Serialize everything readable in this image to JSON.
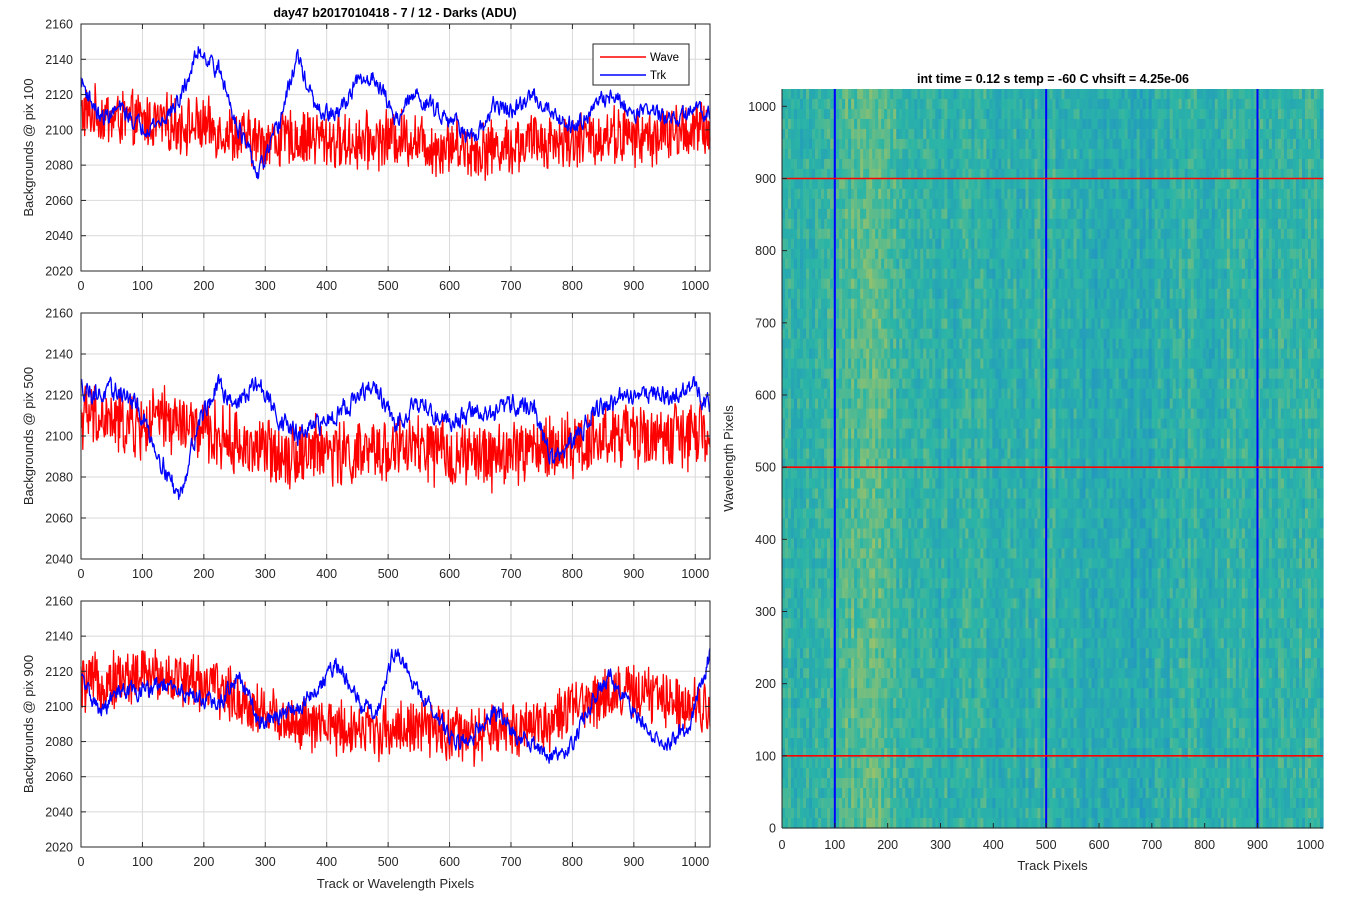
{
  "figure": {
    "title": "day47 b2017010418 - 7 / 12 - Darks (ADU)",
    "heatmap_title": "int time = 0.12 s    temp = -60 C    vhsift = 4.25e-06"
  },
  "colors": {
    "wave": "#ff0000",
    "trk": "#0000ff",
    "grid": "#d9d9d9",
    "axes": "#262626",
    "heatmap_low": "#1f8ec8",
    "heatmap_mid": "#2bb5a6",
    "heatmap_high": "#b9c65a"
  },
  "chart_data": [
    {
      "type": "line",
      "title": "day47 b2017010418 - 7 / 12 - Darks (ADU)",
      "xlabel": "",
      "ylabel": "Backgrounds @ pix 100",
      "xlim": [
        0,
        1024
      ],
      "ylim": [
        2020,
        2160
      ],
      "xticks": [
        "0",
        "100",
        "200",
        "300",
        "400",
        "500",
        "600",
        "700",
        "800",
        "900",
        "1000"
      ],
      "yticks": [
        "2020",
        "2040",
        "2060",
        "2080",
        "2100",
        "2120",
        "2140",
        "2160"
      ],
      "grid": true,
      "legend": "top-right",
      "x": [
        0,
        32,
        64,
        96,
        128,
        160,
        192,
        224,
        256,
        288,
        320,
        352,
        384,
        416,
        448,
        480,
        512,
        544,
        576,
        608,
        640,
        672,
        704,
        736,
        768,
        800,
        832,
        864,
        896,
        928,
        960,
        992,
        1024
      ],
      "series": [
        {
          "name": "Wave",
          "color": "#ff0000",
          "values": [
            2110,
            2108,
            2106,
            2105,
            2104,
            2103,
            2102,
            2100,
            2096,
            2094,
            2094,
            2095,
            2096,
            2093,
            2093,
            2094,
            2096,
            2095,
            2090,
            2092,
            2088,
            2090,
            2091,
            2094,
            2094,
            2094,
            2095,
            2098,
            2096,
            2096,
            2098,
            2100,
            2100
          ],
          "noise": 14
        },
        {
          "name": "Trk",
          "color": "#0000ff",
          "values": [
            2128,
            2106,
            2112,
            2102,
            2104,
            2116,
            2146,
            2134,
            2102,
            2074,
            2100,
            2142,
            2110,
            2108,
            2126,
            2130,
            2106,
            2120,
            2112,
            2106,
            2092,
            2114,
            2110,
            2120,
            2110,
            2102,
            2112,
            2120,
            2110,
            2112,
            2104,
            2110,
            2112
          ],
          "noise": 5
        }
      ]
    },
    {
      "type": "line",
      "title": "",
      "xlabel": "",
      "ylabel": "Backgrounds @ pix 500",
      "xlim": [
        0,
        1024
      ],
      "ylim": [
        2040,
        2160
      ],
      "xticks": [
        "0",
        "100",
        "200",
        "300",
        "400",
        "500",
        "600",
        "700",
        "800",
        "900",
        "1000"
      ],
      "yticks": [
        "2040",
        "2060",
        "2080",
        "2100",
        "2120",
        "2140",
        "2160"
      ],
      "grid": true,
      "x": [
        0,
        32,
        64,
        96,
        128,
        160,
        192,
        224,
        256,
        288,
        320,
        352,
        384,
        416,
        448,
        480,
        512,
        544,
        576,
        608,
        640,
        672,
        704,
        736,
        768,
        800,
        832,
        864,
        896,
        928,
        960,
        992,
        1024
      ],
      "series": [
        {
          "name": "Wave",
          "color": "#ff0000",
          "values": [
            2110,
            2108,
            2106,
            2104,
            2108,
            2106,
            2102,
            2100,
            2096,
            2094,
            2092,
            2092,
            2094,
            2092,
            2090,
            2092,
            2094,
            2094,
            2092,
            2090,
            2090,
            2090,
            2092,
            2094,
            2094,
            2096,
            2098,
            2100,
            2100,
            2100,
            2100,
            2100,
            2100
          ],
          "noise": 14
        },
        {
          "name": "Trk",
          "color": "#0000ff",
          "values": [
            2124,
            2120,
            2122,
            2112,
            2090,
            2070,
            2108,
            2124,
            2116,
            2126,
            2110,
            2100,
            2104,
            2112,
            2118,
            2124,
            2104,
            2118,
            2110,
            2108,
            2112,
            2110,
            2116,
            2114,
            2088,
            2096,
            2112,
            2116,
            2120,
            2122,
            2118,
            2124,
            2116
          ],
          "noise": 5
        }
      ]
    },
    {
      "type": "line",
      "title": "",
      "xlabel": "Track or Wavelength Pixels",
      "ylabel": "Backgrounds @ pix 900",
      "xlim": [
        0,
        1024
      ],
      "ylim": [
        2020,
        2160
      ],
      "xticks": [
        "0",
        "100",
        "200",
        "300",
        "400",
        "500",
        "600",
        "700",
        "800",
        "900",
        "1000"
      ],
      "yticks": [
        "2020",
        "2040",
        "2060",
        "2080",
        "2100",
        "2120",
        "2140",
        "2160"
      ],
      "grid": true,
      "x": [
        0,
        32,
        64,
        96,
        128,
        160,
        192,
        224,
        256,
        288,
        320,
        352,
        384,
        416,
        448,
        480,
        512,
        544,
        576,
        608,
        640,
        672,
        704,
        736,
        768,
        800,
        832,
        864,
        896,
        928,
        960,
        992,
        1024
      ],
      "series": [
        {
          "name": "Wave",
          "color": "#ff0000",
          "values": [
            2112,
            2114,
            2116,
            2118,
            2118,
            2116,
            2114,
            2110,
            2104,
            2098,
            2094,
            2090,
            2088,
            2088,
            2088,
            2086,
            2088,
            2088,
            2086,
            2084,
            2082,
            2086,
            2088,
            2090,
            2092,
            2098,
            2104,
            2108,
            2108,
            2106,
            2104,
            2102,
            2102
          ],
          "noise": 14
        },
        {
          "name": "Trk",
          "color": "#0000ff",
          "values": [
            2116,
            2096,
            2110,
            2108,
            2112,
            2108,
            2106,
            2100,
            2118,
            2092,
            2094,
            2098,
            2110,
            2124,
            2104,
            2096,
            2134,
            2110,
            2096,
            2080,
            2084,
            2098,
            2084,
            2080,
            2070,
            2078,
            2104,
            2118,
            2098,
            2084,
            2080,
            2090,
            2130
          ],
          "noise": 5
        }
      ]
    },
    {
      "type": "heatmap",
      "title": "int time = 0.12 s    temp = -60 C    vhsift = 4.25e-06",
      "xlabel": "Track Pixels",
      "ylabel": "Wavelength Pixels",
      "xlim": [
        0,
        1024
      ],
      "ylim": [
        0,
        1024
      ],
      "xticks": [
        "0",
        "100",
        "200",
        "300",
        "400",
        "500",
        "600",
        "700",
        "800",
        "900",
        "1000"
      ],
      "yticks": [
        "0",
        "100",
        "200",
        "300",
        "400",
        "500",
        "600",
        "700",
        "800",
        "900",
        "1000"
      ],
      "vertical_lines": [
        100,
        500,
        900
      ],
      "horizontal_lines": [
        100,
        500,
        900
      ],
      "vertical_line_color": "#0000ff",
      "horizontal_line_color": "#ff0000"
    }
  ]
}
